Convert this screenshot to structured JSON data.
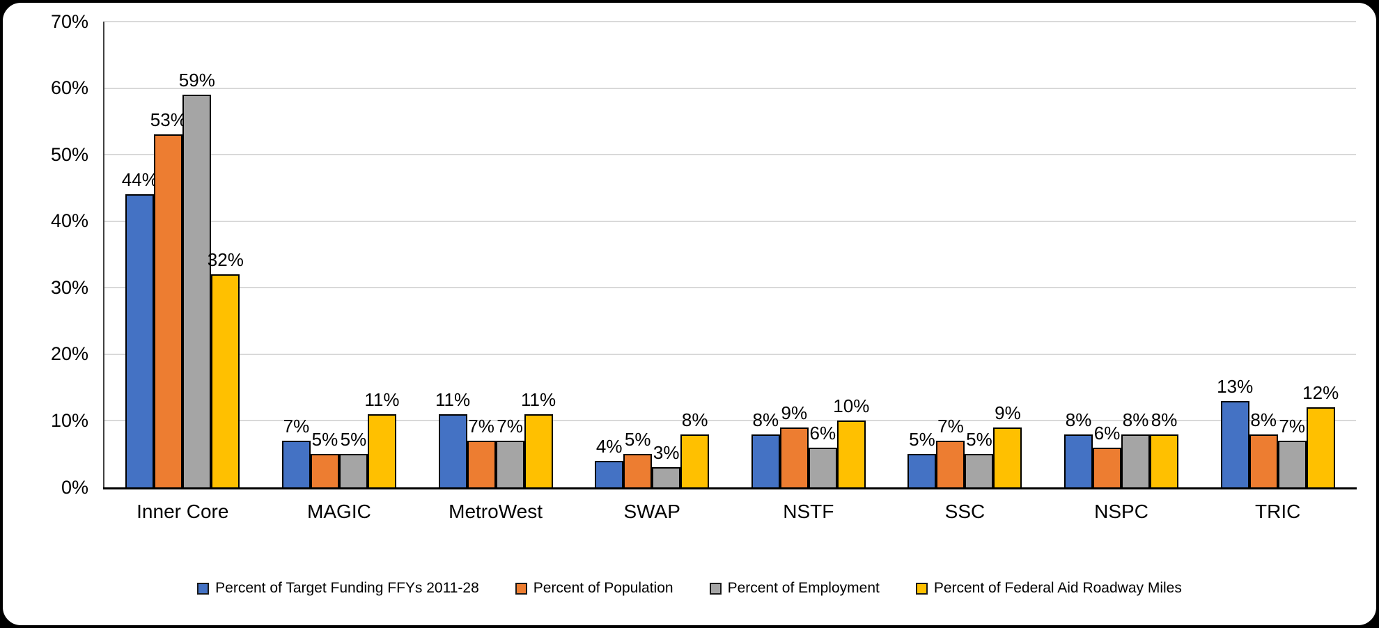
{
  "chart_data": {
    "type": "bar",
    "title": "",
    "categories": [
      "Inner Core",
      "MAGIC",
      "MetroWest",
      "SWAP",
      "NSTF",
      "SSC",
      "NSPC",
      "TRIC"
    ],
    "series": [
      {
        "name": "Percent of Target Funding FFYs 2011-28",
        "color": "#4472C4",
        "values": [
          44,
          7,
          11,
          4,
          8,
          5,
          8,
          13
        ]
      },
      {
        "name": "Percent of Population",
        "color": "#ED7D31",
        "values": [
          53,
          5,
          7,
          5,
          9,
          7,
          6,
          8
        ]
      },
      {
        "name": "Percent of Employment",
        "color": "#A5A5A5",
        "values": [
          59,
          5,
          7,
          3,
          6,
          5,
          8,
          7
        ]
      },
      {
        "name": "Percent of Federal Aid Roadway Miles",
        "color": "#FFC000",
        "values": [
          32,
          11,
          11,
          8,
          10,
          9,
          8,
          12
        ]
      }
    ],
    "y_ticks": [
      "0%",
      "10%",
      "20%",
      "30%",
      "40%",
      "50%",
      "60%",
      "70%"
    ],
    "ylim": [
      0,
      70
    ],
    "grid": true,
    "data_labels": true,
    "label_suffix": "%",
    "legend_position": "bottom"
  },
  "colors": {
    "background": "#FFFFFF",
    "frame_border": "#000000",
    "gridline": "#D9D9D9",
    "y_axis_line": "#404040",
    "x_axis_line": "#000000",
    "bar_border": "#000000",
    "text": "#000000"
  }
}
